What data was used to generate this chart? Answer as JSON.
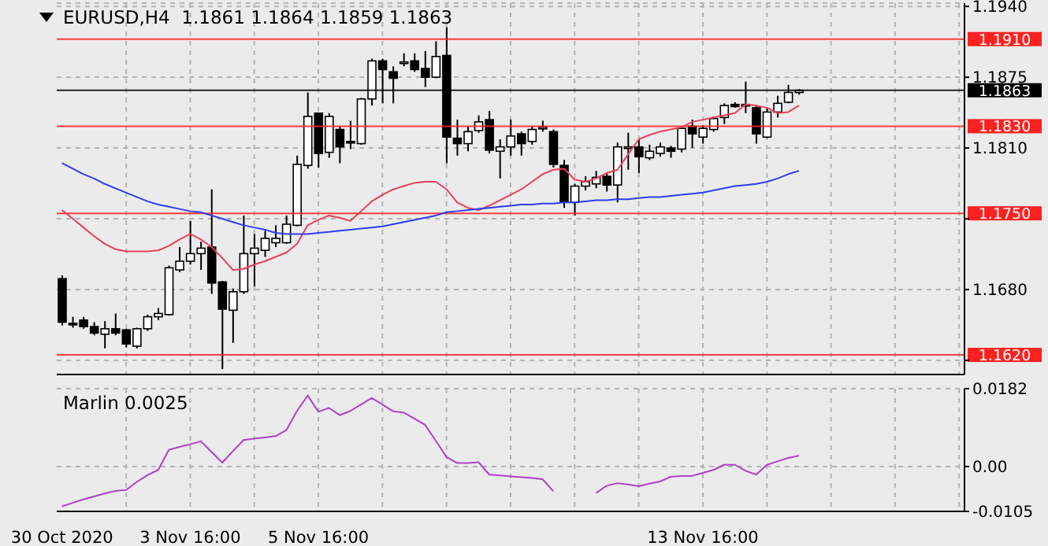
{
  "chart_data": [
    {
      "type": "candlestick",
      "title": "EURUSD,H4  1.1861 1.1864 1.1859 1.1863",
      "ohlc": [
        [
          1.169,
          1.1693,
          1.1647,
          1.165
        ],
        [
          1.1649,
          1.1655,
          1.1645,
          1.1648
        ],
        [
          1.1652,
          1.1655,
          1.1644,
          1.1646
        ],
        [
          1.1646,
          1.165,
          1.1638,
          1.164
        ],
        [
          1.1639,
          1.1651,
          1.1626,
          1.1644
        ],
        [
          1.1644,
          1.1658,
          1.1638,
          1.164
        ],
        [
          1.1643,
          1.1644,
          1.1627,
          1.163
        ],
        [
          1.1628,
          1.1645,
          1.1626,
          1.1644
        ],
        [
          1.1644,
          1.1657,
          1.1642,
          1.1655
        ],
        [
          1.1655,
          1.1663,
          1.1652,
          1.1658
        ],
        [
          1.1657,
          1.1702,
          1.1656,
          1.17
        ],
        [
          1.1698,
          1.1719,
          1.1696,
          1.1706
        ],
        [
          1.1706,
          1.1743,
          1.1703,
          1.1713
        ],
        [
          1.1713,
          1.1724,
          1.1698,
          1.1718
        ],
        [
          1.1719,
          1.1772,
          1.1676,
          1.1686
        ],
        [
          1.1687,
          1.1688,
          1.1607,
          1.1662
        ],
        [
          1.1661,
          1.1681,
          1.1631,
          1.1678
        ],
        [
          1.1678,
          1.1748,
          1.1676,
          1.1713
        ],
        [
          1.1713,
          1.1731,
          1.1683,
          1.1718
        ],
        [
          1.1716,
          1.1734,
          1.171,
          1.1727
        ],
        [
          1.1723,
          1.1739,
          1.1719,
          1.1727
        ],
        [
          1.1723,
          1.1748,
          1.1722,
          1.174
        ],
        [
          1.1739,
          1.1803,
          1.1738,
          1.1795
        ],
        [
          1.1794,
          1.1861,
          1.1791,
          1.1839
        ],
        [
          1.1842,
          1.1842,
          1.1792,
          1.1805
        ],
        [
          1.1806,
          1.1842,
          1.1801,
          1.1839
        ],
        [
          1.1827,
          1.183,
          1.1796,
          1.1811
        ],
        [
          1.1816,
          1.1835,
          1.1809,
          1.1815
        ],
        [
          1.1814,
          1.1856,
          1.1813,
          1.1855
        ],
        [
          1.1855,
          1.1892,
          1.1849,
          1.189
        ],
        [
          1.189,
          1.1892,
          1.1851,
          1.1882
        ],
        [
          1.188,
          1.1885,
          1.1851,
          1.1874
        ],
        [
          1.1888,
          1.1897,
          1.1885,
          1.1889
        ],
        [
          1.189,
          1.1897,
          1.188,
          1.1882
        ],
        [
          1.1883,
          1.1899,
          1.1866,
          1.1875
        ],
        [
          1.1875,
          1.1908,
          1.1874,
          1.1894
        ],
        [
          1.1895,
          1.1921,
          1.1796,
          1.182
        ],
        [
          1.1819,
          1.1836,
          1.1803,
          1.1814
        ],
        [
          1.1814,
          1.183,
          1.1807,
          1.1825
        ],
        [
          1.1826,
          1.184,
          1.1824,
          1.1834
        ],
        [
          1.1836,
          1.1844,
          1.1805,
          1.1808
        ],
        [
          1.1807,
          1.1818,
          1.1782,
          1.1811
        ],
        [
          1.1811,
          1.1836,
          1.1803,
          1.1821
        ],
        [
          1.1823,
          1.1825,
          1.1803,
          1.1814
        ],
        [
          1.1816,
          1.183,
          1.1813,
          1.1827
        ],
        [
          1.1828,
          1.1835,
          1.1825,
          1.1829
        ],
        [
          1.1825,
          1.1827,
          1.1792,
          1.1795
        ],
        [
          1.1794,
          1.1799,
          1.1755,
          1.176
        ],
        [
          1.176,
          1.1777,
          1.1748,
          1.1775
        ],
        [
          1.1775,
          1.1784,
          1.1771,
          1.1779
        ],
        [
          1.1777,
          1.1789,
          1.1773,
          1.1783
        ],
        [
          1.1784,
          1.1787,
          1.177,
          1.1776
        ],
        [
          1.1776,
          1.1815,
          1.176,
          1.1811
        ],
        [
          1.181,
          1.1824,
          1.179,
          1.1811
        ],
        [
          1.1811,
          1.1818,
          1.1787,
          1.1802
        ],
        [
          1.1801,
          1.1813,
          1.1799,
          1.1807
        ],
        [
          1.1805,
          1.1815,
          1.1802,
          1.1811
        ],
        [
          1.181,
          1.1812,
          1.1801,
          1.1807
        ],
        [
          1.1809,
          1.183,
          1.1806,
          1.1828
        ],
        [
          1.183,
          1.1836,
          1.181,
          1.1823
        ],
        [
          1.182,
          1.1831,
          1.1814,
          1.1828
        ],
        [
          1.1827,
          1.1839,
          1.1825,
          1.1837
        ],
        [
          1.1838,
          1.1851,
          1.1832,
          1.1849
        ],
        [
          1.185,
          1.1852,
          1.1847,
          1.1848
        ],
        [
          1.185,
          1.1871,
          1.1842,
          1.1849
        ],
        [
          1.1847,
          1.1849,
          1.1814,
          1.1823
        ],
        [
          1.182,
          1.1847,
          1.1819,
          1.1843
        ],
        [
          1.1843,
          1.1858,
          1.1838,
          1.1851
        ],
        [
          1.1852,
          1.1868,
          1.1851,
          1.1861
        ],
        [
          1.1861,
          1.1864,
          1.1859,
          1.1863
        ],
        null,
        null,
        null,
        null,
        null,
        null,
        null,
        null,
        null,
        null,
        null,
        null,
        null,
        null,
        null
      ],
      "series": [
        {
          "type": "line",
          "color": "#e8405c",
          "values": [
            1.1753,
            1.1745,
            1.1737,
            1.1729,
            1.1722,
            1.1717,
            1.1715,
            1.1715,
            1.1715,
            1.1716,
            1.172,
            1.1726,
            1.1731,
            1.1726,
            1.1719,
            1.1709,
            1.1698,
            1.1699,
            1.1703,
            1.1706,
            1.171,
            1.1714,
            1.1722,
            1.1739,
            1.1744,
            1.1748,
            1.1746,
            1.1743,
            1.1752,
            1.1761,
            1.1767,
            1.1772,
            1.1775,
            1.1778,
            1.1779,
            1.1779,
            1.1772,
            1.176,
            1.1755,
            1.1753,
            1.1757,
            1.1762,
            1.1767,
            1.1772,
            1.1779,
            1.1786,
            1.179,
            1.1791,
            1.1781,
            1.1779,
            1.1782,
            1.1787,
            1.179,
            1.1804,
            1.1818,
            1.1822,
            1.1825,
            1.1827,
            1.1829,
            1.1834,
            1.1836,
            1.1838,
            1.184,
            1.1842,
            1.185,
            1.1849,
            1.1847,
            1.1842,
            1.1843,
            1.1849,
            null,
            null,
            null,
            null,
            null,
            null,
            null,
            null,
            null,
            null,
            null,
            null,
            null,
            null,
            null
          ]
        },
        {
          "type": "line",
          "color": "#2f3cf0",
          "values": [
            1.1796,
            1.1791,
            1.1786,
            1.1782,
            1.1777,
            1.1773,
            1.1769,
            1.1765,
            1.1761,
            1.1758,
            1.1756,
            1.1754,
            1.1752,
            1.1751,
            1.1748,
            1.1745,
            1.1742,
            1.1739,
            1.1737,
            1.1735,
            1.1732,
            1.1731,
            1.1731,
            1.1731,
            1.1732,
            1.1733,
            1.1734,
            1.1735,
            1.1736,
            1.1737,
            1.1738,
            1.174,
            1.1742,
            1.1744,
            1.1746,
            1.1748,
            1.1751,
            1.1752,
            1.1753,
            1.1754,
            1.1755,
            1.1756,
            1.1757,
            1.1758,
            1.1758,
            1.1759,
            1.1759,
            1.176,
            1.176,
            1.1761,
            1.1762,
            1.1762,
            1.1763,
            1.1763,
            1.1764,
            1.1765,
            1.1765,
            1.1766,
            1.1767,
            1.1768,
            1.1769,
            1.1771,
            1.1773,
            1.1775,
            1.1776,
            1.1777,
            1.1779,
            1.1782,
            1.1786,
            1.1789,
            null,
            null,
            null,
            null,
            null,
            null,
            null,
            null,
            null,
            null,
            null,
            null,
            null,
            null,
            null
          ]
        }
      ],
      "ylim": [
        1.1602,
        1.1943
      ],
      "yticks": [
        {
          "value": 1.194,
          "label": "1.1940"
        },
        {
          "value": 1.1875,
          "label": "1.1875"
        },
        {
          "value": 1.181,
          "label": "1.1810"
        },
        {
          "value": 1.1745,
          "label": null
        },
        {
          "value": 1.168,
          "label": "1.1680"
        },
        {
          "value": 1.1615,
          "label": null
        }
      ],
      "grid": true,
      "tick_labels": "y",
      "ref_lines": [
        {
          "axis": "y",
          "value": 1.191,
          "label": "1.1910",
          "color": "#ff2020"
        },
        {
          "axis": "y",
          "value": 1.1863,
          "label": "1.1863",
          "color": "#000000"
        },
        {
          "axis": "y",
          "value": 1.183,
          "label": "1.1830",
          "color": "#ff2020"
        },
        {
          "axis": "y",
          "value": 1.175,
          "label": "1.1750",
          "color": "#ff2020"
        },
        {
          "axis": "y",
          "value": 1.162,
          "label": "1.1620",
          "color": "#ff2020"
        }
      ]
    },
    {
      "type": "line",
      "title": "Marlin 0.0025",
      "categories": [
        "30 Oct 2020",
        null,
        null,
        null,
        null,
        null,
        null,
        null,
        null,
        null,
        null,
        null,
        "3 Nov 16:00",
        null,
        null,
        null,
        null,
        null,
        null,
        null,
        null,
        null,
        null,
        null,
        "5 Nov 16:00",
        null,
        null,
        null,
        null,
        null,
        null,
        null,
        null,
        null,
        null,
        null,
        null,
        null,
        null,
        null,
        null,
        null,
        null,
        null,
        null,
        null,
        null,
        null,
        null,
        null,
        null,
        null,
        null,
        null,
        null,
        null,
        null,
        null,
        null,
        null,
        "13 Nov 16:00",
        null,
        null,
        null,
        null,
        null,
        null,
        null,
        null,
        null,
        null,
        null,
        null,
        null,
        null,
        null,
        null,
        null,
        null,
        null,
        null,
        null,
        null,
        null,
        null
      ],
      "color": "#b040c8",
      "values": [
        -0.0093,
        -0.0085,
        -0.0077,
        -0.007,
        -0.0063,
        -0.0057,
        -0.0055,
        -0.0036,
        -0.002,
        -0.0008,
        0.0039,
        0.0046,
        0.0052,
        0.0059,
        0.0034,
        0.0009,
        0.0036,
        0.0062,
        0.0065,
        0.0068,
        0.0071,
        0.0085,
        0.013,
        0.0166,
        0.0128,
        0.0137,
        0.012,
        0.013,
        0.0145,
        0.016,
        0.0145,
        0.0129,
        0.0126,
        0.0112,
        0.0097,
        0.006,
        0.0022,
        0.0008,
        0.0008,
        0.001,
        -0.0019,
        -0.0021,
        -0.0023,
        -0.0025,
        -0.0027,
        -0.003,
        -0.0058,
        null,
        null,
        null,
        -0.0062,
        -0.0045,
        -0.0039,
        -0.0042,
        -0.0046,
        -0.004,
        -0.0035,
        -0.0024,
        -0.0022,
        -0.0022,
        -0.0015,
        -0.0008,
        0.0004,
        0.0004,
        -0.001,
        -0.0019,
        0.0004,
        0.0012,
        0.002,
        0.0025,
        null,
        null,
        null,
        null,
        null,
        null,
        null,
        null,
        null,
        null,
        null,
        null,
        null,
        null,
        null
      ],
      "ylim": [
        -0.0105,
        0.0182
      ],
      "yticks": [
        0.0182,
        {
          "value": 0,
          "label": "0.00"
        },
        -0.0105
      ],
      "grid": true
    }
  ]
}
